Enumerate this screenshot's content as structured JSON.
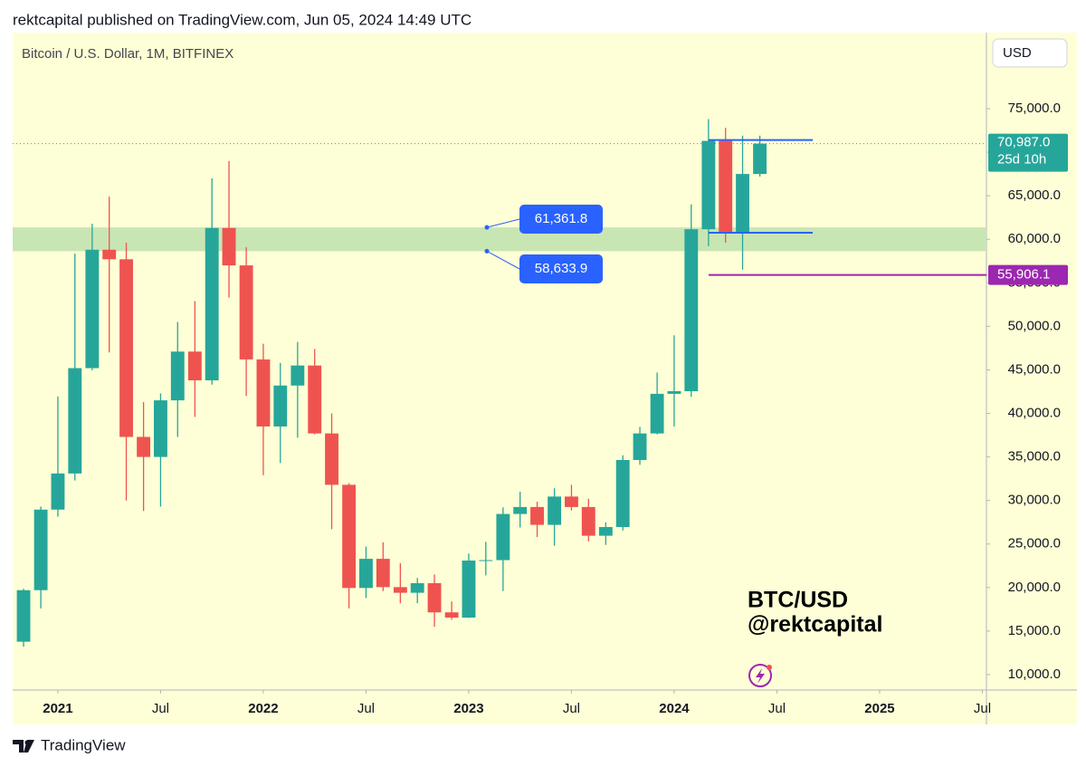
{
  "header": "rektcapital published on TradingView.com, Jun 05, 2024 14:49 UTC",
  "footer": "TradingView",
  "chart_data": {
    "type": "candlestick",
    "title": "Bitcoin / U.S. Dollar, 1M, BITFINEX",
    "currency": "USD",
    "watermark": [
      "BTC/USD",
      "@rektcapital"
    ],
    "up_color": "#26a69a",
    "down_color": "#ef5350",
    "x": [
      2020.833,
      2020.917,
      2021,
      2021.083,
      2021.167,
      2021.25,
      2021.333,
      2021.417,
      2021.5,
      2021.583,
      2021.667,
      2021.75,
      2021.833,
      2021.917,
      2022,
      2022.083,
      2022.167,
      2022.25,
      2022.333,
      2022.417,
      2022.5,
      2022.583,
      2022.667,
      2022.75,
      2022.833,
      2022.917,
      2023,
      2023.083,
      2023.167,
      2023.25,
      2023.333,
      2023.417,
      2023.5,
      2023.583,
      2023.667,
      2023.75,
      2023.833,
      2023.917,
      2024,
      2024.083,
      2024.167,
      2024.25,
      2024.333,
      2024.417
    ],
    "open": [
      13780,
      19700,
      28950,
      33100,
      45200,
      58800,
      57700,
      37300,
      35000,
      41500,
      47100,
      43800,
      61300,
      57000,
      46200,
      38500,
      43200,
      45500,
      37700,
      31800,
      19950,
      23300,
      20050,
      19400,
      20500,
      17150,
      16550,
      23100,
      23150,
      28450,
      29250,
      27200,
      30450,
      29250,
      25950,
      26950,
      34650,
      37700,
      42250,
      42550,
      61150,
      71300,
      60700,
      67500
    ],
    "high": [
      19860,
      29300,
      41950,
      58350,
      61780,
      64900,
      59600,
      41300,
      42300,
      50500,
      52900,
      67000,
      69000,
      59100,
      48000,
      45800,
      48200,
      47400,
      40000,
      32000,
      24700,
      25200,
      22800,
      21100,
      21500,
      18400,
      23900,
      25250,
      29200,
      31000,
      29850,
      31400,
      31800,
      30200,
      27500,
      35200,
      38450,
      44700,
      48970,
      64000,
      73800,
      72800,
      71900,
      71900
    ],
    "low": [
      13200,
      17600,
      28130,
      32300,
      44950,
      47000,
      30000,
      28800,
      29300,
      37300,
      39600,
      43300,
      53300,
      42000,
      32900,
      34300,
      37200,
      37600,
      26700,
      17600,
      18800,
      19600,
      18200,
      18200,
      15500,
      16300,
      16500,
      21400,
      19600,
      26900,
      25800,
      24800,
      28850,
      25300,
      24900,
      26550,
      34100,
      37600,
      38500,
      41900,
      59200,
      59600,
      56500,
      67200
    ],
    "close": [
      19700,
      28950,
      33100,
      45200,
      58800,
      57700,
      37300,
      35000,
      41500,
      47100,
      43800,
      61300,
      57000,
      46200,
      38500,
      43200,
      45500,
      37700,
      31800,
      19950,
      23300,
      20050,
      19400,
      20500,
      17150,
      16550,
      23100,
      23150,
      28450,
      29250,
      27200,
      30450,
      29250,
      25950,
      26950,
      34650,
      37700,
      42250,
      42550,
      61150,
      71300,
      60700,
      67500,
      70987
    ],
    "xlim": [
      2020.78,
      2025.52
    ],
    "xticks": [
      {
        "value": 2021,
        "label": "2021"
      },
      {
        "value": 2021.5,
        "label": "Jul"
      },
      {
        "value": 2022,
        "label": "2022"
      },
      {
        "value": 2022.5,
        "label": "Jul"
      },
      {
        "value": 2023,
        "label": "2023"
      },
      {
        "value": 2023.5,
        "label": "Jul"
      },
      {
        "value": 2024,
        "label": "2024"
      },
      {
        "value": 2024.5,
        "label": "Jul"
      },
      {
        "value": 2025,
        "label": "2025"
      },
      {
        "value": 2025.5,
        "label": "Jul"
      }
    ],
    "ylim": [
      8230,
      83736
    ],
    "yticks": [
      {
        "value": 75000,
        "label": "75,000.0"
      },
      {
        "value": 70000,
        "label": "70,000.0"
      },
      {
        "value": 65000,
        "label": "65,000.0"
      },
      {
        "value": 60000,
        "label": "60,000.0"
      },
      {
        "value": 55000,
        "label": "55,000.0"
      },
      {
        "value": 50000,
        "label": "50,000.0"
      },
      {
        "value": 45000,
        "label": "45,000.0"
      },
      {
        "value": 40000,
        "label": "40,000.0"
      },
      {
        "value": 35000,
        "label": "35,000.0"
      },
      {
        "value": 30000,
        "label": "30,000.0"
      },
      {
        "value": 25000,
        "label": "25,000.0"
      },
      {
        "value": 20000,
        "label": "20,000.0"
      },
      {
        "value": 15000,
        "label": "15,000.0"
      },
      {
        "value": 10000,
        "label": "10,000.0"
      }
    ],
    "zone": {
      "values": [
        61361.8,
        58633.9
      ],
      "value_labels": [
        "61,361.8",
        "58,633.9"
      ],
      "color": "#c8e6b4",
      "label_color": "#2962ff"
    },
    "levels": {
      "values": [
        71400,
        60750
      ],
      "color": "#2962ff"
    },
    "support": {
      "value": 55906.1,
      "label": "55,906.1",
      "color": "#9c27b0"
    },
    "last_price": {
      "value": 70987,
      "label": "70,987.0",
      "countdown": "25d 10h"
    }
  }
}
